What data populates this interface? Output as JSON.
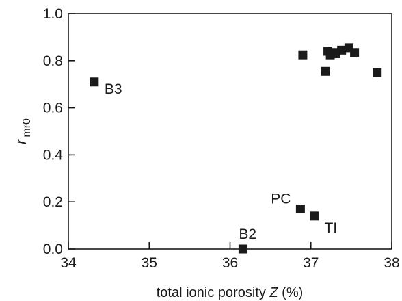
{
  "chart_data": {
    "type": "scatter",
    "title": "",
    "xlabel": "total ionic porosity",
    "xlabel_symbol": "Z",
    "xlabel_unit": "(%)",
    "ylabel": "r",
    "ylabel_subscript": "mr0",
    "xlim": [
      34,
      38
    ],
    "ylim": [
      0.0,
      1.0
    ],
    "x_ticks": [
      34,
      35,
      36,
      37,
      38
    ],
    "x_tick_labels": [
      "34",
      "35",
      "36",
      "37",
      "38"
    ],
    "y_ticks": [
      0.0,
      0.2,
      0.4,
      0.6,
      0.8,
      1.0
    ],
    "y_tick_labels": [
      "0.0",
      "0.2",
      "0.4",
      "0.6",
      "0.8",
      "1.0"
    ],
    "grid": false,
    "legend": "none",
    "marker": "square",
    "marker_color": "#1a1a1a",
    "points": [
      {
        "x": 34.32,
        "y": 0.71,
        "label": "B3"
      },
      {
        "x": 36.16,
        "y": 0.0,
        "label": "B2"
      },
      {
        "x": 36.87,
        "y": 0.17,
        "label": "PC"
      },
      {
        "x": 37.04,
        "y": 0.14,
        "label": "TI"
      },
      {
        "x": 36.9,
        "y": 0.825,
        "label": ""
      },
      {
        "x": 37.18,
        "y": 0.755,
        "label": ""
      },
      {
        "x": 37.21,
        "y": 0.84,
        "label": ""
      },
      {
        "x": 37.24,
        "y": 0.825,
        "label": ""
      },
      {
        "x": 37.28,
        "y": 0.835,
        "label": ""
      },
      {
        "x": 37.31,
        "y": 0.83,
        "label": ""
      },
      {
        "x": 37.38,
        "y": 0.845,
        "label": ""
      },
      {
        "x": 37.47,
        "y": 0.855,
        "label": ""
      },
      {
        "x": 37.54,
        "y": 0.835,
        "label": ""
      },
      {
        "x": 37.82,
        "y": 0.75,
        "label": ""
      }
    ]
  }
}
